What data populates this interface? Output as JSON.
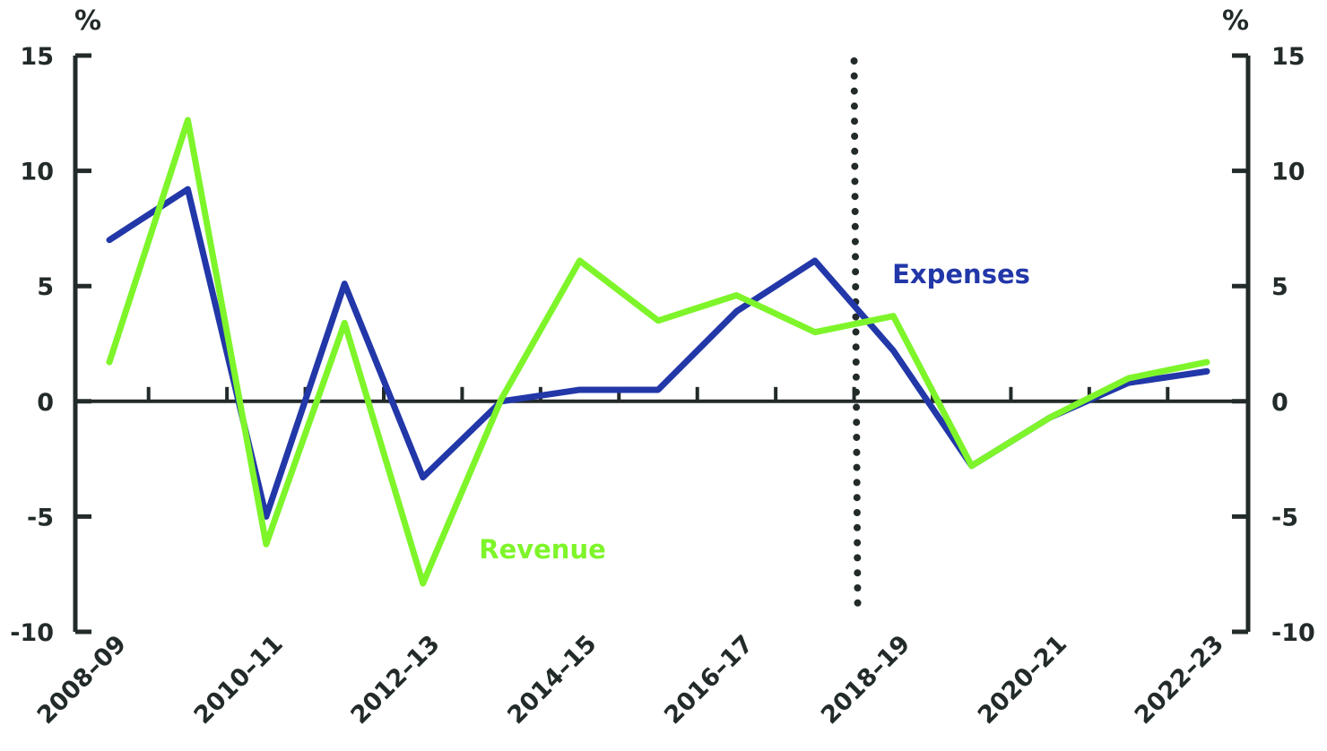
{
  "chart_data": {
    "type": "line",
    "y_unit_left": "%",
    "y_unit_right": "%",
    "ylim": [
      -10,
      15
    ],
    "yticks": [
      -10,
      -5,
      0,
      5,
      10,
      15
    ],
    "grid": false,
    "x": [
      "2008–09",
      "2009–10",
      "2010–11",
      "2011–12",
      "2012–13",
      "2013–14",
      "2014–15",
      "2015–16",
      "2016–17",
      "2017–18",
      "2018–19",
      "2019–20",
      "2020–21",
      "2021–22",
      "2022–23"
    ],
    "x_tick_labels": [
      "2008–09",
      "2010–11",
      "2012–13",
      "2014–15",
      "2016–17",
      "2018–19",
      "2020–21",
      "2022–23"
    ],
    "divider_between": [
      "2017–18",
      "2018–19"
    ],
    "series": [
      {
        "name": "Expenses",
        "color": "#2237a8",
        "values": [
          7.0,
          9.2,
          -5.0,
          5.1,
          -3.3,
          0.0,
          0.5,
          0.5,
          3.9,
          6.1,
          2.2,
          -2.8,
          -0.7,
          0.8,
          1.3
        ]
      },
      {
        "name": "Revenue",
        "color": "#7ef52a",
        "values": [
          1.7,
          12.2,
          -6.2,
          3.4,
          -7.9,
          0.1,
          6.1,
          3.5,
          4.6,
          3.0,
          3.7,
          -2.8,
          -0.7,
          1.0,
          1.7
        ]
      }
    ]
  }
}
